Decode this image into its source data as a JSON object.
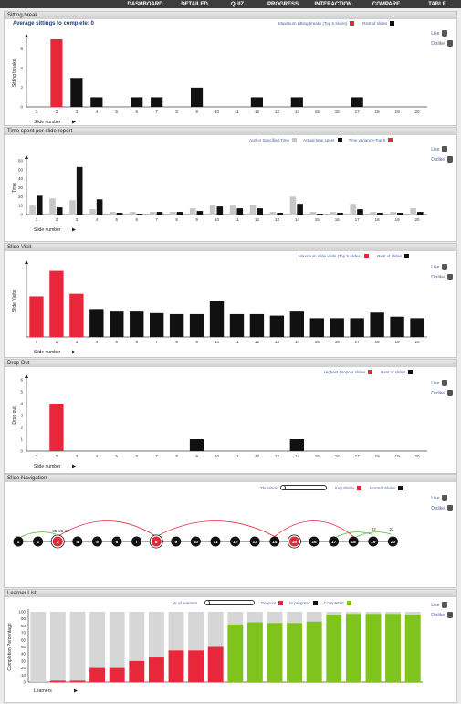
{
  "nav": {
    "tabs": [
      "DASHBOARD",
      "DETAILED",
      "QUIZ",
      "PROGRESS",
      "INTERACTION",
      "COMPARE",
      "TABLE"
    ]
  },
  "common": {
    "like_label": "Like",
    "dislike_label": "Dislike"
  },
  "colors": {
    "highlight": "#e8283a",
    "rest": "#111111",
    "author": "#c7c7c7",
    "progress_green": "#7fc41d",
    "dropout": "#e8283a",
    "inprogress": "#111111",
    "empty": "#d6d6d6"
  },
  "sitting": {
    "title": "Sitting break",
    "average_label": "Average sittings to complete: 0",
    "legend": {
      "top": "Maximum sitting breaks (Top 5 slides)",
      "rest": "Rest of slides"
    },
    "ylabel": "Sitting breaks",
    "xlabel": "Slide number"
  },
  "timespent": {
    "title": "Time spent per slide report",
    "legend": {
      "author": "Author Specified Time",
      "actual": "Actual time spent",
      "variance": "Time variance-Top 5"
    },
    "ylabel": "Time",
    "xlabel": "Slide number"
  },
  "visit": {
    "title": "Slide Visit",
    "legend": {
      "top": "Maximum slide visits (Top 5 slides)",
      "rest": "Rest of slides"
    },
    "ylabel": "Slide Visits",
    "xlabel": "Slide number"
  },
  "dropout": {
    "title": "Drop Out",
    "legend": {
      "top": "Highest Dropout slides",
      "rest": "Rest of slides"
    },
    "ylabel": "Drop out",
    "xlabel": "Slide number"
  },
  "navigation": {
    "title": "Slide Navigation",
    "threshold_label": "Threshold",
    "legend": {
      "key": "Key Slides",
      "normal": "Normal Slides"
    },
    "nodes": [
      "1",
      "2",
      "3",
      "4",
      "5",
      "6",
      "7",
      "8",
      "9",
      "10",
      "11",
      "12",
      "13",
      "14",
      "15",
      "16",
      "17",
      "18",
      "19",
      "20"
    ],
    "key_nodes": [
      3,
      8,
      15
    ],
    "labels": [
      {
        "text": "25",
        "node": 3
      },
      {
        "text": "26",
        "node": 3
      },
      {
        "text": "27",
        "node": 3
      },
      {
        "text": "22",
        "node": 19
      },
      {
        "text": "22",
        "node": 20
      }
    ]
  },
  "learners": {
    "title": "Learner List",
    "nr_label": "Nr of learners",
    "legend": {
      "dropout": "Dropout",
      "inprogress": "In progress",
      "completed": "Completed"
    },
    "ylabel": "Completion Percentage",
    "xlabel": "Learners"
  },
  "chart_data": [
    {
      "type": "bar",
      "title": "Sitting break",
      "categories": [
        "1",
        "2",
        "3",
        "4",
        "5",
        "6",
        "7",
        "8",
        "9",
        "10",
        "11",
        "12",
        "13",
        "14",
        "15",
        "16",
        "17",
        "18",
        "19",
        "20"
      ],
      "series": [
        {
          "name": "Maximum sitting breaks (Top 5 slides)",
          "values": [
            0,
            7,
            0,
            0,
            0,
            0,
            0,
            0,
            0,
            0,
            0,
            0,
            0,
            0,
            0,
            0,
            0,
            0,
            0,
            0
          ]
        },
        {
          "name": "Rest of slides",
          "values": [
            0,
            0,
            3,
            1,
            0,
            1,
            1,
            0,
            2,
            0,
            0,
            1,
            0,
            1,
            0,
            0,
            1,
            0,
            0,
            0
          ]
        }
      ],
      "xlabel": "Slide number",
      "ylabel": "Sitting breaks",
      "ylim": [
        0,
        7
      ],
      "yticks": [
        0,
        2,
        4,
        6
      ]
    },
    {
      "type": "bar",
      "title": "Time spent per slide report",
      "categories": [
        "1",
        "2",
        "3",
        "4",
        "5",
        "6",
        "7",
        "8",
        "9",
        "10",
        "11",
        "12",
        "13",
        "14",
        "15",
        "16",
        "17",
        "18",
        "19",
        "20"
      ],
      "series": [
        {
          "name": "Author Specified Time",
          "values": [
            10,
            18,
            16,
            6,
            3,
            3,
            3,
            3,
            7,
            11,
            10,
            11,
            3,
            20,
            3,
            3,
            12,
            3,
            3,
            7
          ]
        },
        {
          "name": "Actual time spent",
          "values": [
            21,
            8,
            53,
            17,
            2,
            1,
            3,
            3,
            4,
            9,
            7,
            7,
            2,
            12,
            1,
            2,
            6,
            2,
            2,
            3
          ]
        }
      ],
      "xlabel": "Slide number",
      "ylabel": "Time",
      "ylim": [
        0,
        60
      ],
      "yticks": [
        0,
        10,
        20,
        30,
        40,
        50,
        60
      ]
    },
    {
      "type": "bar",
      "title": "Slide Visit",
      "categories": [
        "1",
        "2",
        "3",
        "4",
        "5",
        "6",
        "7",
        "8",
        "9",
        "10",
        "11",
        "12",
        "13",
        "14",
        "15",
        "16",
        "17",
        "18",
        "19",
        "20"
      ],
      "series": [
        {
          "name": "Maximum slide visits (Top 5 slides)",
          "values": [
            8,
            13,
            8.5,
            0,
            0,
            0,
            0,
            0,
            0,
            0,
            0,
            0,
            0,
            0,
            0,
            0,
            0,
            0,
            0,
            0
          ]
        },
        {
          "name": "Rest of slides",
          "values": [
            0,
            0,
            0,
            5.5,
            5,
            5,
            4.7,
            4.5,
            4.5,
            7,
            4.5,
            4.5,
            4.2,
            5,
            3.7,
            3.7,
            3.7,
            4.8,
            4,
            3.7
          ]
        }
      ],
      "xlabel": "Slide number",
      "ylabel": "Slide Visits",
      "ylim": [
        0,
        14
      ]
    },
    {
      "type": "bar",
      "title": "Drop Out",
      "categories": [
        "1",
        "2",
        "3",
        "4",
        "5",
        "6",
        "7",
        "8",
        "9",
        "10",
        "11",
        "12",
        "13",
        "14",
        "15",
        "16",
        "17",
        "18",
        "19",
        "20"
      ],
      "series": [
        {
          "name": "Highest Dropout slides",
          "values": [
            0,
            4,
            0,
            0,
            0,
            0,
            0,
            0,
            0,
            0,
            0,
            0,
            0,
            0,
            0,
            0,
            0,
            0,
            0,
            0
          ]
        },
        {
          "name": "Rest of slides",
          "values": [
            0,
            0,
            0,
            0,
            0,
            0,
            0,
            0,
            1,
            0,
            0,
            0,
            0,
            1,
            0,
            0,
            0,
            0,
            0,
            0
          ]
        }
      ],
      "xlabel": "Slide number",
      "ylabel": "Drop out",
      "ylim": [
        0,
        6
      ],
      "yticks": [
        0,
        1,
        2,
        3,
        4,
        5,
        6
      ]
    },
    {
      "type": "bar",
      "title": "Learner List",
      "series": [
        {
          "name": "Dropout",
          "values": [
            0,
            2,
            2,
            20,
            20,
            30,
            35,
            45,
            45,
            50,
            0,
            0,
            0,
            0,
            0,
            0,
            0,
            0,
            0,
            0
          ]
        },
        {
          "name": "Completed",
          "values": [
            0,
            0,
            0,
            0,
            0,
            0,
            0,
            0,
            0,
            0,
            82,
            85,
            84,
            84,
            86,
            96,
            97,
            97,
            97,
            96
          ]
        }
      ],
      "xlabel": "Learners",
      "ylabel": "Completion Percentage",
      "ylim": [
        0,
        100
      ],
      "yticks": [
        0,
        10,
        20,
        30,
        40,
        50,
        60,
        70,
        80,
        90,
        100
      ]
    }
  ]
}
